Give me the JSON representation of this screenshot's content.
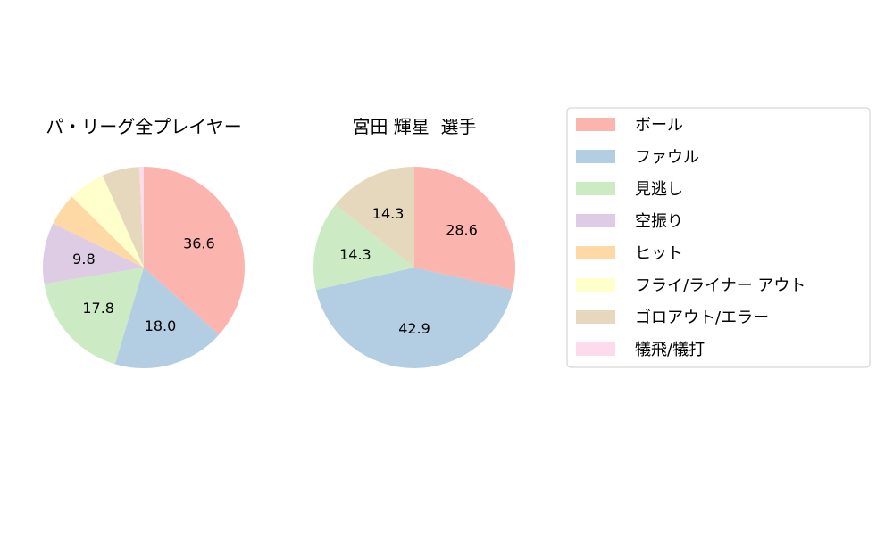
{
  "legend": {
    "items": [
      "ボール",
      "ファウル",
      "見逃し",
      "空振り",
      "ヒット",
      "フライ/ライナー アウト",
      "ゴロアウト/エラー",
      "犠飛/犠打"
    ],
    "colors": [
      "#fbb4ae",
      "#b3cde3",
      "#ccebc5",
      "#decbe4",
      "#fed9a6",
      "#ffffcc",
      "#e5d8bd",
      "#fddaec"
    ]
  },
  "chart_data": [
    {
      "type": "pie",
      "title": "パ・リーグ全プレイヤー",
      "labels": [
        "ボール",
        "ファウル",
        "見逃し",
        "空振り",
        "ヒット",
        "フライ/ライナー アウト",
        "ゴロアウト/エラー",
        "犠飛/犠打"
      ],
      "values": [
        36.6,
        18.0,
        17.8,
        9.8,
        5.2,
        5.9,
        6.0,
        0.7
      ],
      "data_labels": [
        "36.6",
        "18.0",
        "17.8",
        "9.8",
        "",
        "",
        "",
        ""
      ],
      "start_angle": 90,
      "direction": "clockwise"
    },
    {
      "type": "pie",
      "title": "宮田 輝星  選手",
      "labels": [
        "ボール",
        "ファウル",
        "見逃し",
        "空振り",
        "ヒット",
        "フライ/ライナー アウト",
        "ゴロアウト/エラー",
        "犠飛/犠打"
      ],
      "values": [
        28.6,
        42.9,
        14.3,
        0,
        0,
        0,
        14.3,
        0
      ],
      "data_labels": [
        "28.6",
        "42.9",
        "14.3",
        "",
        "",
        "",
        "14.3",
        ""
      ],
      "start_angle": 90,
      "direction": "clockwise"
    }
  ]
}
